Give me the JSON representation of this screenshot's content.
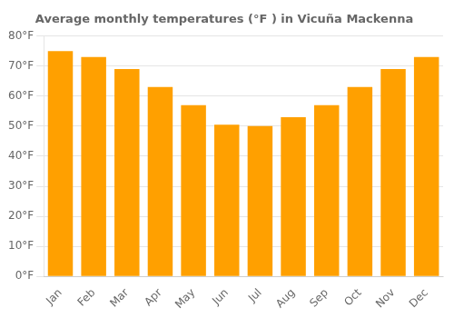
{
  "chart_data": {
    "type": "bar",
    "title": "Average monthly temperatures (°F ) in Vicuña Mackenna",
    "categories": [
      "Jan",
      "Feb",
      "Mar",
      "Apr",
      "May",
      "Jun",
      "Jul",
      "Aug",
      "Sep",
      "Oct",
      "Nov",
      "Dec"
    ],
    "values": [
      75,
      73,
      69,
      63,
      57,
      50.5,
      50,
      53,
      57,
      63,
      69,
      73
    ],
    "color": "#FFA000",
    "ylim": [
      0,
      80
    ],
    "yticks": [
      {
        "value": 0,
        "label": "0°F"
      },
      {
        "value": 10,
        "label": "10°F"
      },
      {
        "value": 20,
        "label": "20°F"
      },
      {
        "value": 30,
        "label": "30°F"
      },
      {
        "value": 40,
        "label": "40°F"
      },
      {
        "value": 50,
        "label": "50°F"
      },
      {
        "value": 60,
        "label": "60°F"
      },
      {
        "value": 70,
        "label": "70°F"
      },
      {
        "value": 80,
        "label": "80°F"
      }
    ],
    "grid": true
  }
}
